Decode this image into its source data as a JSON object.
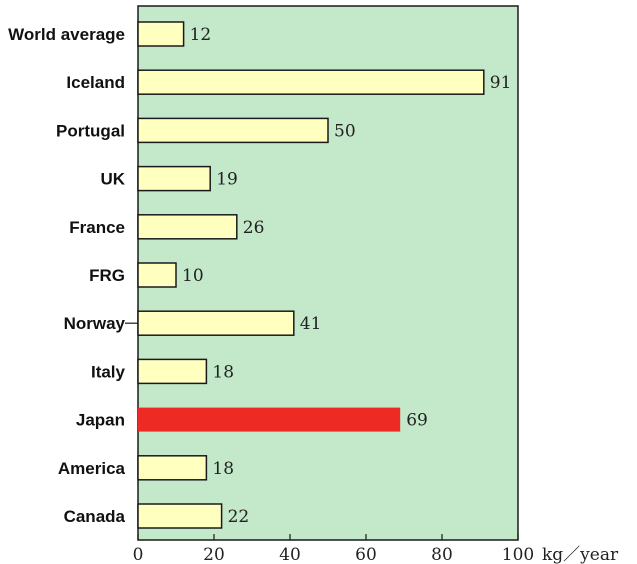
{
  "chart_data": {
    "type": "bar",
    "orientation": "horizontal",
    "categories": [
      "World average",
      "Iceland",
      "Portugal",
      "UK",
      "France",
      "FRG",
      "Norway",
      "Italy",
      "Japan",
      "America",
      "Canada"
    ],
    "values": [
      12,
      91,
      50,
      19,
      26,
      10,
      41,
      18,
      69,
      18,
      22
    ],
    "value_labels": [
      "12",
      "91",
      "50",
      "19",
      "26",
      "10",
      "41",
      "18",
      "69",
      "18",
      "22"
    ],
    "highlight_category": "Japan",
    "xlim": [
      0,
      100
    ],
    "x_ticks": [
      0,
      20,
      40,
      60,
      80,
      100
    ],
    "x_tick_labels": [
      "0",
      "20",
      "40",
      "60",
      "80",
      "100"
    ],
    "x_unit": "kg／year",
    "grid": false,
    "colors": {
      "plot_background": "#c4e8ca",
      "bar_fill": "#ffffc0",
      "highlight_fill": "#ee2a24",
      "bar_stroke": "#1a1a1a"
    }
  }
}
